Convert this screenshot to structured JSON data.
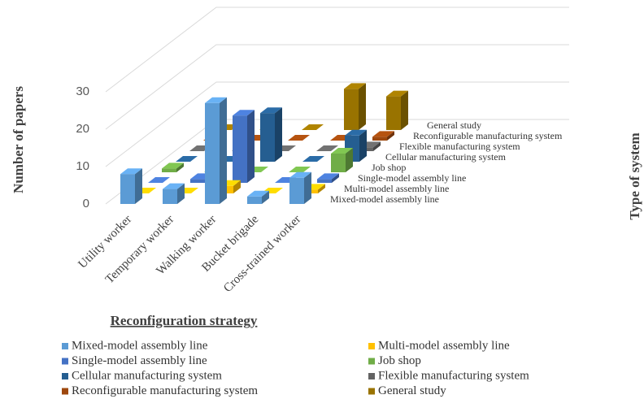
{
  "chart_data": {
    "type": "bar3d",
    "categories": [
      "Utility worker",
      "Temporary worker",
      "Walking worker",
      "Bucket brigade",
      "Cross-trained worker"
    ],
    "series": [
      {
        "name": "Mixed-model assembly line",
        "color": "#5b9bd5",
        "values": [
          8,
          4,
          27,
          2,
          7
        ]
      },
      {
        "name": "Multi-model assembly line",
        "color": "#ffc000",
        "values": [
          0,
          0,
          2,
          0,
          1
        ]
      },
      {
        "name": "Single-model assembly line",
        "color": "#4472c4",
        "values": [
          0,
          1,
          18,
          0,
          1
        ]
      },
      {
        "name": "Job shop",
        "color": "#70ad47",
        "values": [
          1,
          0,
          0,
          0,
          5
        ]
      },
      {
        "name": "Cellular manufacturing system",
        "color": "#255e91",
        "values": [
          0,
          0,
          13,
          0,
          7
        ]
      },
      {
        "name": "Flexible manufacturing system",
        "color": "#636363",
        "values": [
          0,
          0,
          0,
          0,
          1
        ]
      },
      {
        "name": "Reconfigurable manufacturing system",
        "color": "#9e480e",
        "values": [
          0,
          0,
          0,
          0,
          1
        ]
      },
      {
        "name": "General study",
        "color": "#997300",
        "values": [
          0,
          0,
          0,
          11,
          9
        ]
      }
    ],
    "ylim": [
      0,
      30
    ],
    "yticks": [
      0,
      10,
      20,
      30
    ],
    "grid": true,
    "y_label": "Number of papers",
    "x_label": "Reconfiguration strategy",
    "z_label": "Type of system",
    "legend": "bottom"
  }
}
